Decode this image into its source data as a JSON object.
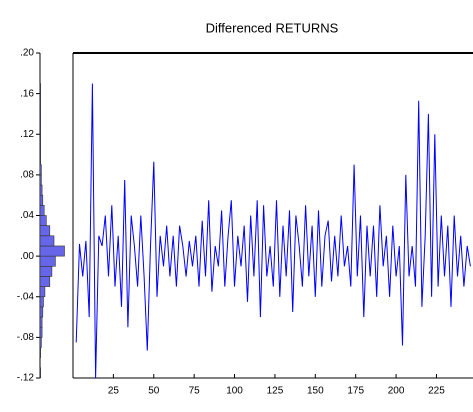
{
  "chart_data": {
    "type": "line",
    "title": "Differenced RETURNS",
    "x": [
      2,
      4,
      6,
      8,
      10,
      12,
      14,
      16,
      18,
      20,
      22,
      24,
      26,
      28,
      30,
      32,
      34,
      36,
      38,
      40,
      42,
      44,
      46,
      48,
      50,
      52,
      54,
      56,
      58,
      60,
      62,
      64,
      66,
      68,
      70,
      72,
      74,
      76,
      78,
      80,
      82,
      84,
      86,
      88,
      90,
      92,
      94,
      96,
      98,
      100,
      102,
      104,
      106,
      108,
      110,
      112,
      114,
      116,
      118,
      120,
      122,
      124,
      126,
      128,
      130,
      132,
      134,
      136,
      138,
      140,
      142,
      144,
      146,
      148,
      150,
      152,
      154,
      156,
      158,
      160,
      162,
      164,
      166,
      168,
      170,
      172,
      174,
      176,
      178,
      180,
      182,
      184,
      186,
      188,
      190,
      192,
      194,
      196,
      198,
      200,
      202,
      204,
      206,
      208,
      210,
      212,
      214,
      216,
      218,
      220,
      222,
      224,
      226,
      228,
      230,
      232,
      234,
      236,
      238,
      240,
      242,
      244,
      246
    ],
    "series": [
      {
        "color": "#0000ff",
        "values": [
          -0.085,
          0.012,
          -0.02,
          0.015,
          -0.06,
          0.17,
          -0.12,
          0.02,
          0.01,
          0.04,
          -0.02,
          0.05,
          -0.03,
          0.02,
          -0.05,
          0.075,
          -0.07,
          0.04,
          0.01,
          -0.03,
          0.04,
          -0.02,
          -0.093,
          0.01,
          0.093,
          -0.04,
          0.02,
          -0.01,
          0.03,
          -0.02,
          0.02,
          -0.03,
          0.03,
          0.01,
          -0.02,
          0.015,
          -0.01,
          0.02,
          -0.03,
          0.035,
          -0.02,
          0.055,
          -0.035,
          0.01,
          -0.01,
          0.045,
          -0.03,
          0.02,
          0.055,
          -0.03,
          0.02,
          -0.01,
          0.03,
          -0.045,
          0.04,
          -0.02,
          0.055,
          -0.06,
          0.05,
          -0.02,
          0.01,
          -0.03,
          0.055,
          -0.04,
          0.03,
          -0.02,
          0.045,
          -0.055,
          0.04,
          0.01,
          -0.03,
          0.05,
          -0.02,
          0.03,
          -0.04,
          0.045,
          -0.03,
          0.02,
          0.035,
          -0.025,
          0.02,
          -0.02,
          0.04,
          -0.01,
          0.01,
          -0.03,
          0.09,
          -0.02,
          0.04,
          -0.06,
          0.03,
          -0.02,
          0.03,
          -0.04,
          0.05,
          -0.01,
          0.02,
          -0.04,
          0.03,
          -0.02,
          0.01,
          -0.088,
          0.08,
          -0.02,
          0.01,
          -0.03,
          0.153,
          -0.05,
          0.02,
          0.14,
          -0.04,
          0.12,
          -0.03,
          0.04,
          -0.02,
          0.03,
          -0.05,
          0.04,
          -0.02,
          0.02,
          -0.03,
          0.01,
          -0.01
        ]
      }
    ],
    "xlim": [
      0,
      247
    ],
    "xticks": [
      25,
      50,
      75,
      100,
      125,
      150,
      175,
      200,
      225
    ],
    "ylim": [
      -0.12,
      0.2
    ],
    "yticks": [
      {
        "value": -0.12,
        "label": "-.12"
      },
      {
        "value": -0.08,
        "label": "-.08"
      },
      {
        "value": -0.04,
        "label": "-.04"
      },
      {
        "value": 0,
        "label": ".00"
      },
      {
        "value": 0.04,
        "label": ".04"
      },
      {
        "value": 0.08,
        "label": ".08"
      },
      {
        "value": 0.12,
        "label": ".12"
      },
      {
        "value": 0.16,
        "label": ".16"
      },
      {
        "value": 0.2,
        "label": ".20"
      }
    ],
    "histogram": {
      "color": "#6666e8",
      "xlim": [
        0,
        40
      ],
      "bins": [
        -0.12,
        -0.11,
        -0.1,
        -0.09,
        -0.08,
        -0.07,
        -0.06,
        -0.05,
        -0.04,
        -0.03,
        -0.02,
        -0.01,
        0,
        0.01,
        0.02,
        0.03,
        0.04,
        0.05,
        0.06,
        0.07,
        0.08,
        0.09,
        0.1,
        0.11,
        0.12,
        0.13,
        0.14,
        0.15,
        0.16,
        0.17
      ],
      "counts": [
        1,
        0,
        1,
        2,
        3,
        3,
        4,
        5,
        7,
        14,
        17,
        22,
        35,
        20,
        14,
        9,
        6,
        4,
        3,
        2,
        2,
        1,
        1,
        1,
        1,
        1,
        1,
        1,
        1
      ]
    }
  }
}
